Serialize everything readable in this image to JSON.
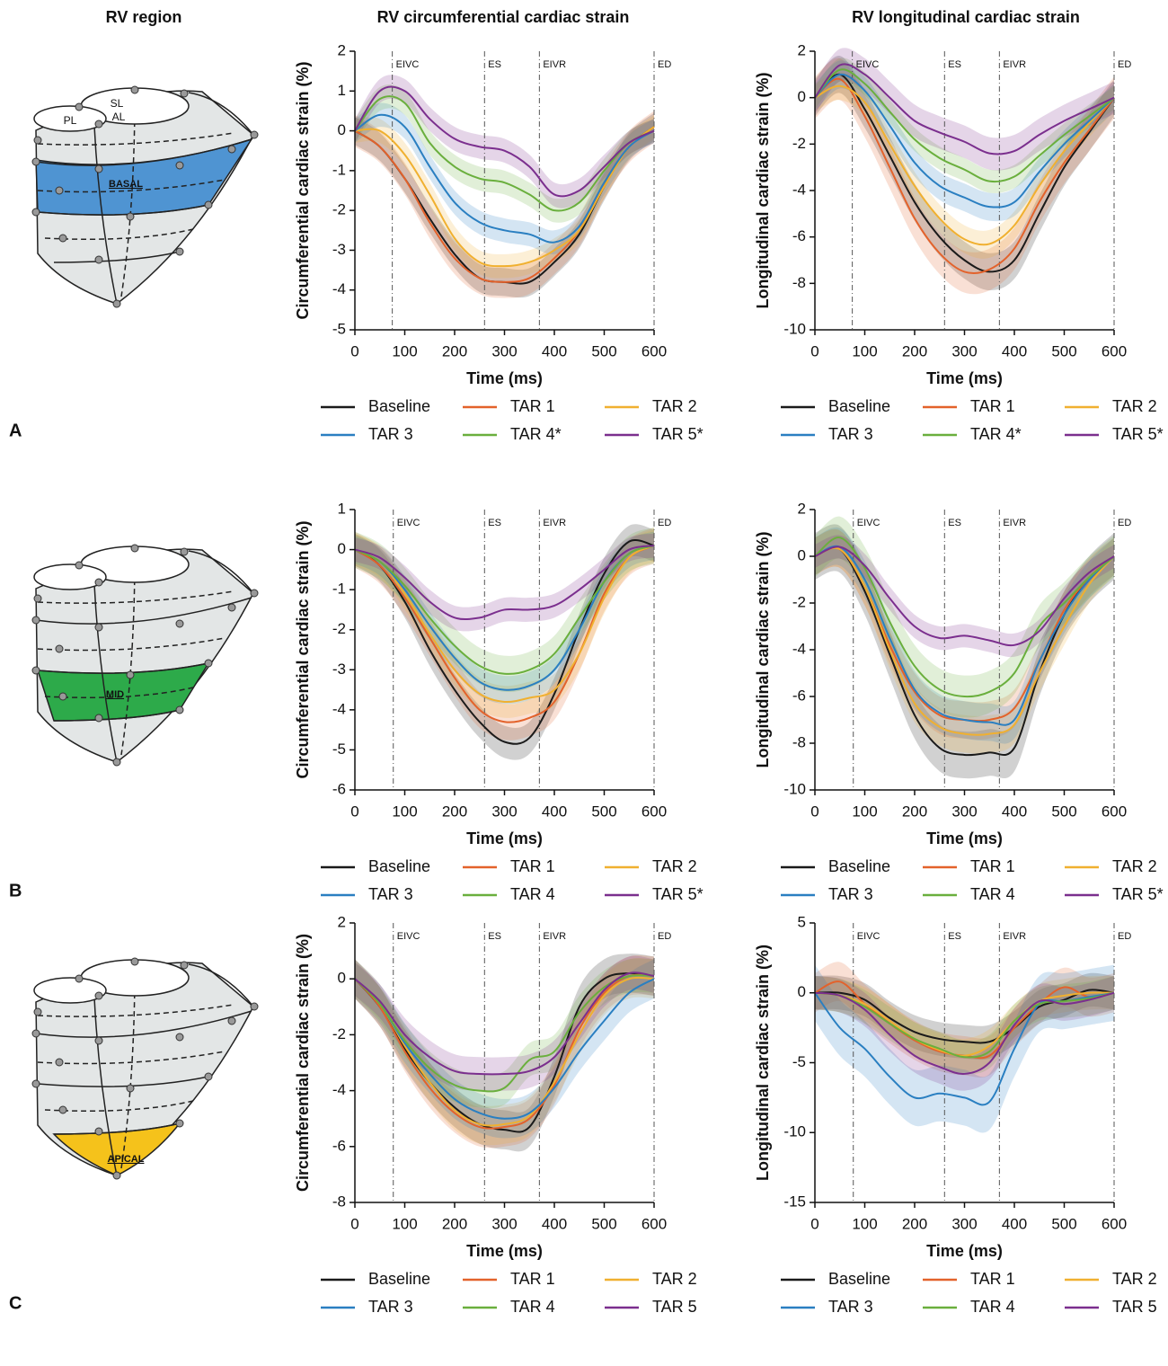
{
  "figure": {
    "column_titles": [
      "RV region",
      "RV circumferential cardiac strain",
      "RV longitudinal cardiac strain"
    ],
    "diagram_labels": [
      "PL",
      "SL",
      "AL"
    ],
    "panels": [
      {
        "label": "A",
        "region": "BASAL",
        "color": "#4f94d2"
      },
      {
        "label": "B",
        "region": "MID",
        "color": "#2daa4a"
      },
      {
        "label": "C",
        "region": "APICAL",
        "color": "#f5c21b"
      }
    ]
  },
  "chart_data": [
    {
      "type": "line",
      "xlabel": "Time (ms)",
      "ylabel": "Circumferential cardiac strain (%)",
      "legend": "below",
      "x": [
        0,
        50,
        100,
        150,
        200,
        250,
        300,
        350,
        400,
        450,
        500,
        550,
        600
      ],
      "xlim": [
        0,
        600
      ],
      "xticks": [
        0,
        100,
        200,
        300,
        400,
        500,
        600
      ],
      "ylim": [
        -5,
        2
      ],
      "yticks": [
        -5,
        -4,
        -3,
        -2,
        -1,
        0,
        1,
        2
      ],
      "events": [
        {
          "label": "EIVC",
          "x": 75
        },
        {
          "label": "ES",
          "x": 260
        },
        {
          "label": "EIVR",
          "x": 370
        },
        {
          "label": "ED",
          "x": 600
        }
      ],
      "series": [
        {
          "name": "Baseline",
          "color": "#1a1a1a",
          "sd": 0.35,
          "values": [
            0,
            -0.4,
            -1.2,
            -2.2,
            -3.1,
            -3.7,
            -3.8,
            -3.8,
            -3.3,
            -2.6,
            -1.4,
            -0.4,
            0.1
          ]
        },
        {
          "name": "TAR 1",
          "color": "#e3622b",
          "sd": 0.4,
          "values": [
            0,
            -0.4,
            -1.2,
            -2.3,
            -3.2,
            -3.7,
            -3.8,
            -3.7,
            -3.2,
            -2.5,
            -1.3,
            -0.4,
            0.1
          ]
        },
        {
          "name": "TAR 2",
          "color": "#f0b030",
          "sd": 0.3,
          "values": [
            0,
            0,
            -0.6,
            -1.6,
            -2.7,
            -3.3,
            -3.4,
            -3.3,
            -3.0,
            -2.5,
            -1.4,
            -0.4,
            0.1
          ]
        },
        {
          "name": "TAR 3",
          "color": "#2a7fc1",
          "sd": 0.3,
          "values": [
            0,
            0.4,
            0.1,
            -0.9,
            -1.8,
            -2.3,
            -2.5,
            -2.6,
            -2.8,
            -2.4,
            -1.3,
            -0.4,
            0
          ]
        },
        {
          "name": "TAR 4*",
          "color": "#6aaf3d",
          "sd": 0.3,
          "values": [
            0,
            0.8,
            0.7,
            -0.3,
            -0.9,
            -1.2,
            -1.3,
            -1.6,
            -2.0,
            -1.8,
            -1.0,
            -0.3,
            0
          ]
        },
        {
          "name": "TAR 5*",
          "color": "#7b2f8e",
          "sd": 0.3,
          "values": [
            0,
            1.0,
            1.0,
            0.3,
            -0.2,
            -0.4,
            -0.5,
            -0.9,
            -1.6,
            -1.5,
            -0.9,
            -0.3,
            0
          ]
        }
      ]
    },
    {
      "type": "line",
      "xlabel": "Time (ms)",
      "ylabel": "Longitudinal cardiac strain (%)",
      "legend": "below",
      "x": [
        0,
        50,
        100,
        150,
        200,
        250,
        300,
        350,
        400,
        450,
        500,
        550,
        600
      ],
      "xlim": [
        0,
        600
      ],
      "xticks": [
        0,
        100,
        200,
        300,
        400,
        500,
        600
      ],
      "ylim": [
        -10,
        2
      ],
      "yticks": [
        -10,
        -8,
        -6,
        -4,
        -2,
        0,
        2
      ],
      "events": [
        {
          "label": "EIVC",
          "x": 75
        },
        {
          "label": "ES",
          "x": 260
        },
        {
          "label": "EIVR",
          "x": 370
        },
        {
          "label": "ED",
          "x": 600
        }
      ],
      "series": [
        {
          "name": "Baseline",
          "color": "#1a1a1a",
          "sd": 0.8,
          "values": [
            0,
            1.0,
            -0.5,
            -2.5,
            -4.5,
            -6.0,
            -7.0,
            -7.5,
            -7.0,
            -5.0,
            -3.0,
            -1.5,
            0
          ]
        },
        {
          "name": "TAR 1",
          "color": "#e3622b",
          "sd": 0.9,
          "values": [
            0,
            0.8,
            -0.8,
            -3.0,
            -5.2,
            -6.7,
            -7.5,
            -7.4,
            -6.5,
            -4.5,
            -2.8,
            -1.4,
            0
          ]
        },
        {
          "name": "TAR 2",
          "color": "#f0b030",
          "sd": 0.6,
          "values": [
            0,
            0.5,
            -0.2,
            -2.0,
            -3.8,
            -5.2,
            -6.1,
            -6.3,
            -5.5,
            -3.8,
            -2.3,
            -1.1,
            0
          ]
        },
        {
          "name": "TAR 3",
          "color": "#2a7fc1",
          "sd": 0.6,
          "values": [
            0,
            1.0,
            0.3,
            -1.2,
            -2.8,
            -3.8,
            -4.3,
            -4.7,
            -4.5,
            -3.2,
            -2.0,
            -1.0,
            0
          ]
        },
        {
          "name": "TAR 4*",
          "color": "#6aaf3d",
          "sd": 0.5,
          "values": [
            0,
            1.2,
            0.6,
            -0.6,
            -1.8,
            -2.6,
            -3.1,
            -3.6,
            -3.4,
            -2.5,
            -1.6,
            -0.8,
            0
          ]
        },
        {
          "name": "TAR 5*",
          "color": "#7b2f8e",
          "sd": 0.7,
          "values": [
            0,
            1.4,
            1.0,
            0,
            -1.0,
            -1.5,
            -1.9,
            -2.4,
            -2.3,
            -1.6,
            -1.0,
            -0.5,
            0
          ]
        }
      ]
    },
    {
      "type": "line",
      "xlabel": "Time (ms)",
      "ylabel": "Circumferential cardiac strain (%)",
      "legend": "below",
      "x": [
        0,
        50,
        100,
        150,
        200,
        250,
        300,
        350,
        400,
        450,
        500,
        550,
        600
      ],
      "xlim": [
        0,
        600
      ],
      "xticks": [
        0,
        100,
        200,
        300,
        400,
        500,
        600
      ],
      "ylim": [
        -6,
        1
      ],
      "yticks": [
        -6,
        -5,
        -4,
        -3,
        -2,
        -1,
        0,
        1
      ],
      "events": [
        {
          "label": "EIVC",
          "x": 77
        },
        {
          "label": "ES",
          "x": 260
        },
        {
          "label": "EIVR",
          "x": 370
        },
        {
          "label": "ED",
          "x": 600
        }
      ],
      "series": [
        {
          "name": "Baseline",
          "color": "#1a1a1a",
          "sd": 0.4,
          "values": [
            0,
            -0.4,
            -1.3,
            -2.5,
            -3.5,
            -4.3,
            -4.8,
            -4.7,
            -3.6,
            -2.0,
            -0.6,
            0.2,
            0.1
          ]
        },
        {
          "name": "TAR 1",
          "color": "#e3622b",
          "sd": 0.45,
          "values": [
            0,
            -0.4,
            -1.2,
            -2.2,
            -3.2,
            -4.0,
            -4.3,
            -4.2,
            -3.8,
            -2.6,
            -1.1,
            -0.2,
            0.1
          ]
        },
        {
          "name": "TAR 2",
          "color": "#f0b030",
          "sd": 0.4,
          "values": [
            0,
            -0.3,
            -1.1,
            -2.1,
            -3.0,
            -3.6,
            -3.8,
            -3.7,
            -3.5,
            -2.6,
            -1.2,
            -0.2,
            0.1
          ]
        },
        {
          "name": "TAR 3",
          "color": "#2a7fc1",
          "sd": 0.35,
          "values": [
            0,
            -0.3,
            -1.0,
            -1.9,
            -2.7,
            -3.3,
            -3.5,
            -3.4,
            -3.0,
            -2.0,
            -0.8,
            -0.1,
            0.1
          ]
        },
        {
          "name": "TAR 4",
          "color": "#6aaf3d",
          "sd": 0.45,
          "values": [
            0,
            -0.3,
            -0.9,
            -1.7,
            -2.4,
            -2.9,
            -3.1,
            -3.0,
            -2.6,
            -1.7,
            -0.8,
            -0.1,
            0.1
          ]
        },
        {
          "name": "TAR 5*",
          "color": "#7b2f8e",
          "sd": 0.3,
          "values": [
            0,
            -0.2,
            -0.7,
            -1.3,
            -1.7,
            -1.7,
            -1.5,
            -1.5,
            -1.4,
            -1.0,
            -0.5,
            0,
            0.1
          ]
        }
      ]
    },
    {
      "type": "line",
      "xlabel": "Time (ms)",
      "ylabel": "Longitudinal cardiac strain (%)",
      "legend": "below",
      "x": [
        0,
        50,
        100,
        150,
        200,
        250,
        300,
        350,
        400,
        450,
        500,
        550,
        600
      ],
      "xlim": [
        0,
        600
      ],
      "xticks": [
        0,
        100,
        200,
        300,
        400,
        500,
        600
      ],
      "ylim": [
        -10,
        2
      ],
      "yticks": [
        -10,
        -8,
        -6,
        -4,
        -2,
        0,
        2
      ],
      "events": [
        {
          "label": "EIVC",
          "x": 77
        },
        {
          "label": "ES",
          "x": 260
        },
        {
          "label": "EIVR",
          "x": 370
        },
        {
          "label": "ED",
          "x": 600
        }
      ],
      "series": [
        {
          "name": "Baseline",
          "color": "#1a1a1a",
          "sd": 1.0,
          "values": [
            0,
            0.3,
            -1.5,
            -4.2,
            -6.8,
            -8.2,
            -8.5,
            -8.4,
            -8.2,
            -5.0,
            -2.5,
            -1.0,
            0
          ]
        },
        {
          "name": "TAR 1",
          "color": "#e3622b",
          "sd": 0.8,
          "values": [
            0,
            0.3,
            -1.3,
            -3.8,
            -5.8,
            -6.8,
            -7.0,
            -7.0,
            -6.5,
            -4.5,
            -2.3,
            -0.9,
            0
          ]
        },
        {
          "name": "TAR 2",
          "color": "#f0b030",
          "sd": 0.8,
          "values": [
            0,
            0.3,
            -1.3,
            -4.0,
            -6.3,
            -7.3,
            -7.6,
            -7.6,
            -7.2,
            -5.0,
            -3.0,
            -1.2,
            0
          ]
        },
        {
          "name": "TAR 3",
          "color": "#2a7fc1",
          "sd": 0.8,
          "values": [
            0,
            0.4,
            -1.0,
            -3.5,
            -5.7,
            -6.7,
            -7.0,
            -7.1,
            -7.0,
            -4.5,
            -2.5,
            -1.0,
            0
          ]
        },
        {
          "name": "TAR 4",
          "color": "#6aaf3d",
          "sd": 0.9,
          "values": [
            0,
            0.8,
            -0.5,
            -2.8,
            -4.7,
            -5.7,
            -6.0,
            -5.8,
            -5.0,
            -3.0,
            -2.0,
            -0.9,
            0
          ]
        },
        {
          "name": "TAR 5*",
          "color": "#7b2f8e",
          "sd": 0.5,
          "values": [
            0,
            0.4,
            -0.4,
            -1.8,
            -3.0,
            -3.5,
            -3.4,
            -3.6,
            -3.8,
            -3.2,
            -1.8,
            -0.7,
            0
          ]
        }
      ]
    },
    {
      "type": "line",
      "xlabel": "Time (ms)",
      "ylabel": "Circumferential cardiac strain (%)",
      "legend": "below",
      "x": [
        0,
        50,
        100,
        150,
        200,
        250,
        300,
        350,
        400,
        450,
        500,
        550,
        600
      ],
      "xlim": [
        0,
        600
      ],
      "xticks": [
        0,
        100,
        200,
        300,
        400,
        500,
        600
      ],
      "ylim": [
        -8,
        2
      ],
      "yticks": [
        -8,
        -6,
        -4,
        -2,
        0,
        2
      ],
      "events": [
        {
          "label": "EIVC",
          "x": 77
        },
        {
          "label": "ES",
          "x": 260
        },
        {
          "label": "EIVR",
          "x": 370
        },
        {
          "label": "ED",
          "x": 600
        }
      ],
      "series": [
        {
          "name": "Baseline",
          "color": "#1a1a1a",
          "sd": 0.7,
          "values": [
            0,
            -1.0,
            -2.5,
            -3.7,
            -4.6,
            -5.2,
            -5.4,
            -5.3,
            -3.5,
            -1.0,
            0,
            0.2,
            0.1
          ]
        },
        {
          "name": "TAR 1",
          "color": "#e3622b",
          "sd": 0.7,
          "values": [
            0,
            -1.0,
            -2.6,
            -3.9,
            -4.8,
            -5.3,
            -5.3,
            -5.0,
            -3.8,
            -1.8,
            -0.5,
            0.1,
            0.1
          ]
        },
        {
          "name": "TAR 2",
          "color": "#f0b030",
          "sd": 0.7,
          "values": [
            0,
            -0.9,
            -2.4,
            -3.7,
            -4.7,
            -5.2,
            -5.2,
            -4.9,
            -3.7,
            -2.0,
            -0.6,
            0,
            0
          ]
        },
        {
          "name": "TAR 3",
          "color": "#2a7fc1",
          "sd": 0.7,
          "values": [
            0,
            -0.9,
            -2.3,
            -3.4,
            -4.3,
            -4.8,
            -5.0,
            -4.8,
            -3.9,
            -2.6,
            -1.5,
            -0.5,
            0
          ]
        },
        {
          "name": "TAR 4",
          "color": "#6aaf3d",
          "sd": 0.6,
          "values": [
            0,
            -0.9,
            -2.2,
            -3.2,
            -3.8,
            -4.0,
            -3.9,
            -2.9,
            -2.6,
            -1.2,
            -0.3,
            0.1,
            0.1
          ]
        },
        {
          "name": "TAR 5",
          "color": "#7b2f8e",
          "sd": 0.6,
          "values": [
            0,
            -0.8,
            -2.0,
            -2.8,
            -3.3,
            -3.4,
            -3.4,
            -3.3,
            -2.8,
            -1.6,
            -0.4,
            0.2,
            0.1
          ]
        }
      ]
    },
    {
      "type": "line",
      "xlabel": "Time (ms)",
      "ylabel": "Longitudinal cardiac strain (%)",
      "legend": "below",
      "x": [
        0,
        50,
        100,
        150,
        200,
        250,
        300,
        350,
        400,
        450,
        500,
        550,
        600
      ],
      "xlim": [
        0,
        600
      ],
      "xticks": [
        0,
        100,
        200,
        300,
        400,
        500,
        600
      ],
      "ylim": [
        -15,
        5
      ],
      "yticks": [
        -15,
        -10,
        -5,
        0,
        5
      ],
      "events": [
        {
          "label": "EIVC",
          "x": 77
        },
        {
          "label": "ES",
          "x": 260
        },
        {
          "label": "EIVR",
          "x": 370
        },
        {
          "label": "ED",
          "x": 600
        }
      ],
      "series": [
        {
          "name": "Baseline",
          "color": "#1a1a1a",
          "sd": 1.2,
          "values": [
            0,
            0,
            -0.5,
            -1.8,
            -2.8,
            -3.3,
            -3.5,
            -3.5,
            -2.5,
            -1.0,
            -0.5,
            0.2,
            0
          ]
        },
        {
          "name": "TAR 1",
          "color": "#e3622b",
          "sd": 1.4,
          "values": [
            0,
            0.8,
            -0.8,
            -2.2,
            -3.4,
            -4.2,
            -4.5,
            -4.5,
            -2.5,
            -0.8,
            0.4,
            -0.3,
            0
          ]
        },
        {
          "name": "TAR 2",
          "color": "#f0b030",
          "sd": 1.2,
          "values": [
            0,
            -0.2,
            -0.8,
            -2.0,
            -3.3,
            -4.1,
            -4.5,
            -3.8,
            -2.0,
            -0.6,
            -0.2,
            0,
            0
          ]
        },
        {
          "name": "TAR 3",
          "color": "#2a7fc1",
          "sd": 2.0,
          "values": [
            0,
            -2.5,
            -4.0,
            -6.0,
            -7.5,
            -7.2,
            -7.5,
            -7.8,
            -4.0,
            -0.8,
            -0.6,
            -0.3,
            0
          ]
        },
        {
          "name": "TAR 4",
          "color": "#6aaf3d",
          "sd": 1.2,
          "values": [
            0,
            -0.2,
            -1.0,
            -2.2,
            -3.3,
            -4.0,
            -4.6,
            -4.2,
            -2.0,
            -0.8,
            -0.6,
            -0.4,
            0
          ]
        },
        {
          "name": "TAR 5",
          "color": "#7b2f8e",
          "sd": 1.2,
          "values": [
            0,
            -0.2,
            -1.2,
            -3.0,
            -4.5,
            -5.3,
            -5.8,
            -5.0,
            -2.3,
            -0.6,
            -0.8,
            -0.5,
            0
          ]
        }
      ]
    }
  ]
}
